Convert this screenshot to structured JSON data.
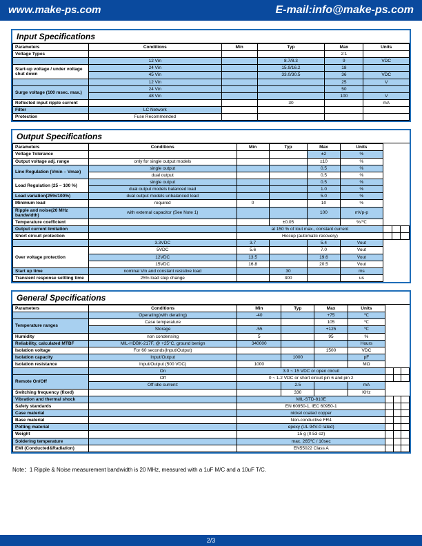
{
  "header": {
    "website": "www.make-ps.com",
    "email": "E-mail:info@make-ps.com"
  },
  "sections": [
    {
      "title": "Input Specifications",
      "headers": [
        "Parameters",
        "Conditions",
        "Min",
        "Typ",
        "Max",
        "Units"
      ],
      "rows": [
        {
          "c": [
            "Voltage Types",
            "",
            "",
            "",
            "2:1",
            ""
          ],
          "pb": 0,
          "rb": []
        },
        {
          "c": [
            "",
            "12 Vin",
            "",
            "8.7/8.3",
            "9",
            "VDC"
          ],
          "rb": [
            0,
            1,
            2,
            3,
            4,
            5
          ]
        },
        {
          "c": [
            "Start-up voltage / under voltage shut down",
            "24 Vin",
            "",
            "15.9/16.2",
            "18",
            ""
          ],
          "rs": {
            "0": 2
          },
          "rb": [
            1,
            2,
            3,
            4,
            5
          ]
        },
        {
          "c": [
            "45 Vin",
            "",
            "33.0/30.5",
            "36",
            "VDC"
          ],
          "skip": 1,
          "rb": [
            0,
            1,
            2,
            3,
            4
          ]
        },
        {
          "c": [
            "",
            "12 Vin",
            "",
            "",
            "25",
            "V"
          ],
          "rb": [
            0,
            1,
            2,
            3,
            4,
            5
          ]
        },
        {
          "c": [
            "Surge voltage (100 msec. max.)",
            "24 Vin",
            "",
            "",
            "50",
            ""
          ],
          "pb": 1,
          "rs": {
            "0": 2
          },
          "rb": [
            1,
            2,
            3,
            4,
            5
          ]
        },
        {
          "c": [
            "48 Vin",
            "",
            "",
            "100",
            "V"
          ],
          "skip": 1,
          "rb": [
            0,
            1,
            2,
            3,
            4
          ]
        },
        {
          "c": [
            "Reflected input ripple current",
            "",
            "",
            "30",
            "",
            "mA"
          ],
          "pb": 0,
          "rb": []
        },
        {
          "c": [
            "Filter",
            "LC Network",
            "",
            "",
            "",
            ""
          ],
          "pb": 0,
          "rb": [
            0,
            1
          ]
        },
        {
          "c": [
            "Protection",
            "Fuse Recommended",
            "",
            "",
            "",
            ""
          ],
          "pb": 0,
          "rb": []
        }
      ]
    },
    {
      "title": "Output Specifications",
      "headers": [
        "Parameters",
        "Conditions",
        "Min",
        "Typ",
        "Max",
        "Units"
      ],
      "rows": [
        {
          "c": [
            "Voltage Tolerance",
            "",
            "",
            "",
            "±2",
            "%"
          ],
          "pb": 0,
          "rb": [
            4,
            5
          ]
        },
        {
          "c": [
            "Output voltage adj. range",
            "only for single output models",
            "",
            "",
            "±10",
            "%"
          ],
          "pb": 0,
          "rb": []
        },
        {
          "c": [
            "Line Regulation (Vmin – Vmax)",
            "single output",
            "",
            "",
            "0.5",
            "%"
          ],
          "pb": 1,
          "rs": {
            "0": 2
          },
          "rb": [
            1,
            2,
            3,
            4,
            5
          ]
        },
        {
          "c": [
            "dual output",
            "",
            "",
            "0.5",
            "%"
          ],
          "skip": 1,
          "rb": []
        },
        {
          "c": [
            "Load Regulation (25 – 100 %)",
            "single output",
            "",
            "",
            "0.5",
            "%"
          ],
          "pb": 0,
          "rs": {
            "0": 2
          },
          "rb": [
            1,
            2,
            3,
            4,
            5
          ]
        },
        {
          "c": [
            "dual output models balanced load",
            "",
            "",
            "1.0",
            "%"
          ],
          "skip": 1,
          "rb": [
            0,
            1,
            2,
            3,
            4
          ]
        },
        {
          "c": [
            "Load variation(25%/100%)",
            "dual output models unbalanced load",
            "",
            "",
            "5.0",
            "%"
          ],
          "pb": 0,
          "rb": [
            0,
            1,
            2,
            3,
            4,
            5
          ]
        },
        {
          "c": [
            "Minimum load",
            "required",
            "0",
            "",
            "10",
            "%"
          ],
          "pb": 0,
          "rb": []
        },
        {
          "c": [
            "Ripple and noise(20 MHz bandwidth)",
            "with external capacitor (See Note 1)",
            "",
            "",
            "100",
            "mVp-p"
          ],
          "pb": 0,
          "rb": [
            0,
            1,
            2,
            3,
            4,
            5
          ]
        },
        {
          "c": [
            "Temperature coefficient",
            "",
            "",
            "±0.05",
            "",
            "%/℃"
          ],
          "pb": 0,
          "rb": []
        },
        {
          "c": [
            "Output current limitation",
            "",
            "at 150 % of Iout max., constant current",
            "",
            "",
            ""
          ],
          "pb": 0,
          "cs": {
            "2": 4
          },
          "rb": [
            0,
            1,
            2
          ]
        },
        {
          "c": [
            "Short circuit protection",
            "",
            "Hiccup (automatic recovery)",
            "",
            "",
            ""
          ],
          "pb": 0,
          "cs": {
            "2": 4
          },
          "rb": []
        },
        {
          "c": [
            "",
            "3.3VDC",
            "3.7",
            "",
            "5.4",
            "Vout"
          ],
          "rb": [
            0,
            1,
            2,
            3,
            4,
            5
          ]
        },
        {
          "c": [
            "Over voltage protection",
            "5VDC",
            "5.6",
            "",
            "7.0",
            "Vout"
          ],
          "pb": 0,
          "rs": {
            "0": 3
          },
          "rb": []
        },
        {
          "c": [
            "12VDC",
            "13.5",
            "",
            "19.6",
            "Vout"
          ],
          "skip": 1,
          "rb": [
            0,
            1,
            2,
            3,
            4
          ]
        },
        {
          "c": [
            "15VDC",
            "16.8",
            "",
            "20.5",
            "Vout"
          ],
          "skip": 1,
          "rb": []
        },
        {
          "c": [
            "Start up time",
            "nominal Vin and constant resistive load",
            "",
            "30",
            "",
            "ms"
          ],
          "pb": 0,
          "rb": [
            0,
            1,
            2,
            3,
            4,
            5
          ]
        },
        {
          "c": [
            "Transient response settling time",
            "25% load step change",
            "",
            "300",
            "",
            "us"
          ],
          "pb": 0,
          "rb": []
        }
      ]
    },
    {
      "title": "General  Specifications",
      "headers": [
        "Parameters",
        "Conditions",
        "Min",
        "Typ",
        "Max",
        "Units"
      ],
      "rows": [
        {
          "c": [
            "",
            "Operating(with derating)",
            "-40",
            "",
            "+75",
            "℃"
          ],
          "rb": [
            0,
            1,
            2,
            3,
            4,
            5
          ]
        },
        {
          "c": [
            "Temperature ranges",
            "Case temperature",
            "",
            "",
            "105",
            "℃"
          ],
          "pb": 1,
          "rs": {
            "0": 2
          },
          "rb": []
        },
        {
          "c": [
            "Storage",
            "-55",
            "",
            "+125",
            "℃"
          ],
          "skip": 1,
          "rb": [
            0,
            1,
            2,
            3,
            4
          ]
        },
        {
          "c": [
            "Humidity",
            "non condensing",
            "5",
            "",
            "95",
            "%"
          ],
          "pb": 0,
          "rb": []
        },
        {
          "c": [
            "Reliability, calculated MTBF",
            "MIL-HDBK-217F, @ +25°C, ground benign",
            "340000",
            "",
            "",
            "Hours"
          ],
          "pb": 0,
          "rb": [
            0,
            1,
            2,
            3,
            4,
            5
          ]
        },
        {
          "c": [
            "Isolation voltage",
            "For 60 seconds(Input/Output)",
            "",
            "",
            "1500",
            "VDC"
          ],
          "pb": 0,
          "rb": []
        },
        {
          "c": [
            "Isolation capacity",
            "Input/Output",
            "",
            "1000",
            "",
            "pF"
          ],
          "pb": 0,
          "rb": [
            0,
            1,
            2,
            3,
            4,
            5
          ]
        },
        {
          "c": [
            "Isolation resistance",
            "Input/Output (500 VDC)",
            "1000",
            "",
            "",
            "MΩ"
          ],
          "pb": 0,
          "rb": []
        },
        {
          "c": [
            "",
            "On",
            "3.0 ~ 15 VDC or open circuit",
            "",
            "",
            ""
          ],
          "cs": {
            "2": 4
          },
          "rb": [
            0,
            1,
            2
          ]
        },
        {
          "c": [
            "Remote On/Off",
            "Off",
            "0 ~ 1.2 VDC or short circuit pin 6 and pin 2",
            "",
            "",
            ""
          ],
          "pb": 1,
          "rs": {
            "0": 2
          },
          "cs": {
            "2": 4
          },
          "rb": []
        },
        {
          "c": [
            "Off idle current:",
            "",
            "2.5",
            "",
            "mA"
          ],
          "skip": 1,
          "rb": [
            0,
            1,
            2,
            3,
            4
          ]
        },
        {
          "c": [
            "Switching frequency (fixed)",
            "",
            "",
            "330",
            "",
            "KHz"
          ],
          "pb": 0,
          "rb": []
        },
        {
          "c": [
            "Vibration and thermal shock",
            "",
            "MIL-STD-810E",
            "",
            "",
            ""
          ],
          "pb": 0,
          "cs": {
            "2": 4
          },
          "rb": [
            0,
            1,
            2
          ]
        },
        {
          "c": [
            "Safety standards",
            "",
            "EN 60950-1, IEC 60950-1",
            "",
            "",
            ""
          ],
          "pb": 0,
          "cs": {
            "2": 4
          },
          "rb": []
        },
        {
          "c": [
            "Case material",
            "",
            "nickel coated copper",
            "",
            "",
            ""
          ],
          "pb": 0,
          "cs": {
            "2": 4
          },
          "rb": [
            0,
            1,
            2
          ]
        },
        {
          "c": [
            "Base material",
            "",
            "Non-conductive FR4",
            "",
            "",
            ""
          ],
          "pb": 0,
          "cs": {
            "2": 4
          },
          "rb": []
        },
        {
          "c": [
            "Potting material",
            "",
            "epoxy (UL 94V-0 rated)",
            "",
            "",
            ""
          ],
          "pb": 0,
          "cs": {
            "2": 4
          },
          "rb": [
            0,
            1,
            2
          ]
        },
        {
          "c": [
            "Weight",
            "",
            "15 g (0.53 oz)",
            "",
            "",
            ""
          ],
          "pb": 0,
          "cs": {
            "2": 4
          },
          "rb": []
        },
        {
          "c": [
            "Soldering temperature",
            "",
            "max. 265℃ / 10sec",
            "",
            "",
            ""
          ],
          "pb": 0,
          "cs": {
            "2": 4
          },
          "rb": [
            0,
            1,
            2
          ]
        },
        {
          "c": [
            "EMI (Conducted&Radiation)",
            "",
            "EN55022 Class A",
            "",
            "",
            ""
          ],
          "pb": 0,
          "cs": {
            "2": 4
          },
          "rb": []
        }
      ]
    }
  ],
  "note": "Note：1 Ripple & Noise measurement bandwidth is 20 MHz, measured with a 1uF M/C and a 10uF T/C.",
  "footer": "2/3"
}
